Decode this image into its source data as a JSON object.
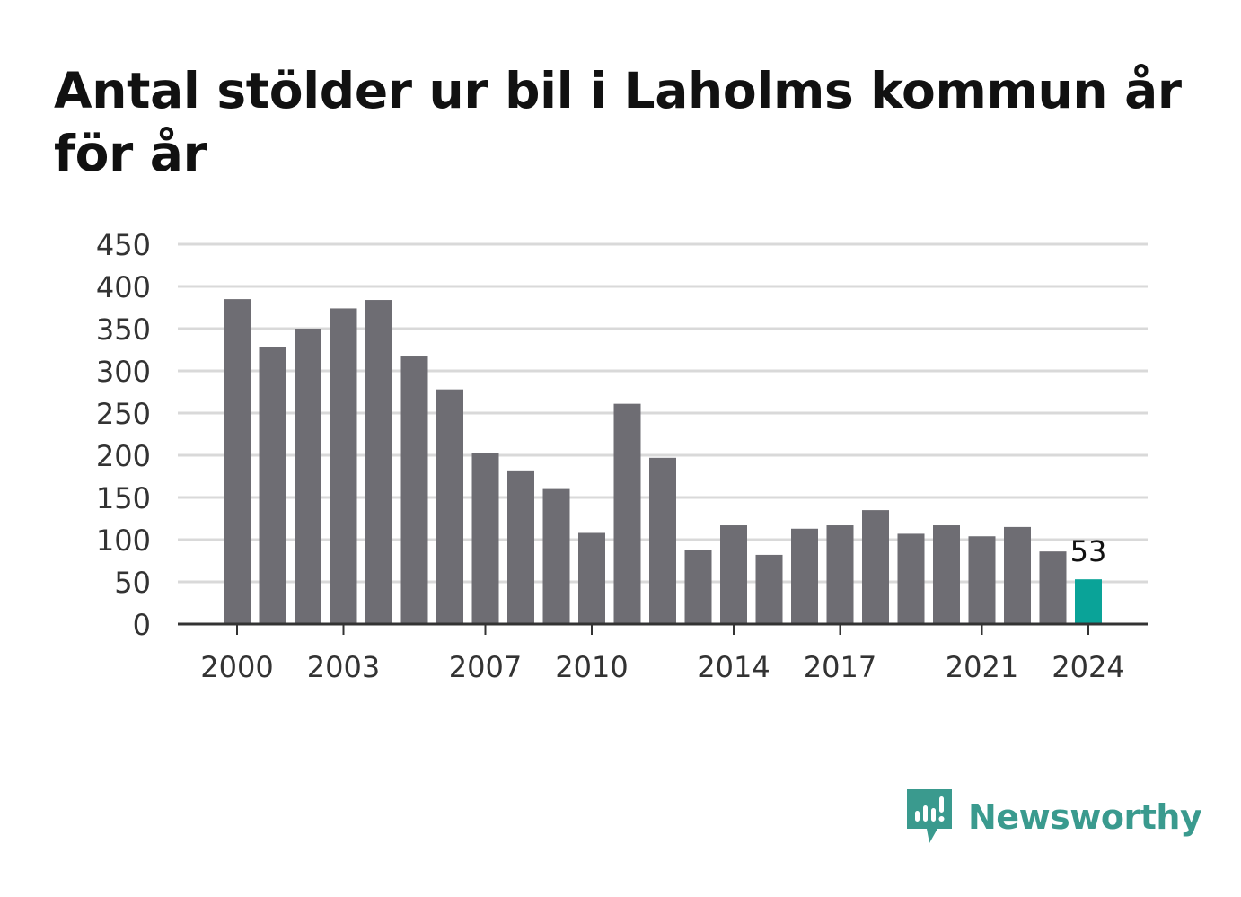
{
  "title": "Antal stölder ur bil i Laholms kommun år för år",
  "brand": {
    "name": "Newsworthy",
    "icon": "newsworthy-chart-bubble-icon"
  },
  "colors": {
    "bar": "#6e6d73",
    "highlight": "#0aa398",
    "grid": "#d9d9d9",
    "axis": "#333333",
    "brand": "#3a9a8e"
  },
  "chart_data": {
    "type": "bar",
    "title": "Antal stölder ur bil i Laholms kommun år för år",
    "categories": [
      "2000",
      "2001",
      "2002",
      "2003",
      "2004",
      "2005",
      "2006",
      "2007",
      "2008",
      "2009",
      "2010",
      "2011",
      "2012",
      "2013",
      "2014",
      "2015",
      "2016",
      "2017",
      "2018",
      "2019",
      "2020",
      "2021",
      "2022",
      "2023",
      "2024"
    ],
    "values": [
      385,
      328,
      350,
      374,
      384,
      317,
      278,
      203,
      181,
      160,
      108,
      261,
      197,
      88,
      117,
      82,
      113,
      117,
      135,
      107,
      117,
      104,
      115,
      86,
      53
    ],
    "highlight_index": 24,
    "data_labels": [
      {
        "category": "2024",
        "text": "53"
      }
    ],
    "x_tick_labels": [
      "2000",
      "2003",
      "2007",
      "2010",
      "2014",
      "2017",
      "2021",
      "2024"
    ],
    "y_ticks": [
      0,
      50,
      100,
      150,
      200,
      250,
      300,
      350,
      400,
      450
    ],
    "ylim": [
      0,
      450
    ],
    "xlabel": "",
    "ylabel": "",
    "grid": true,
    "legend": "none"
  }
}
